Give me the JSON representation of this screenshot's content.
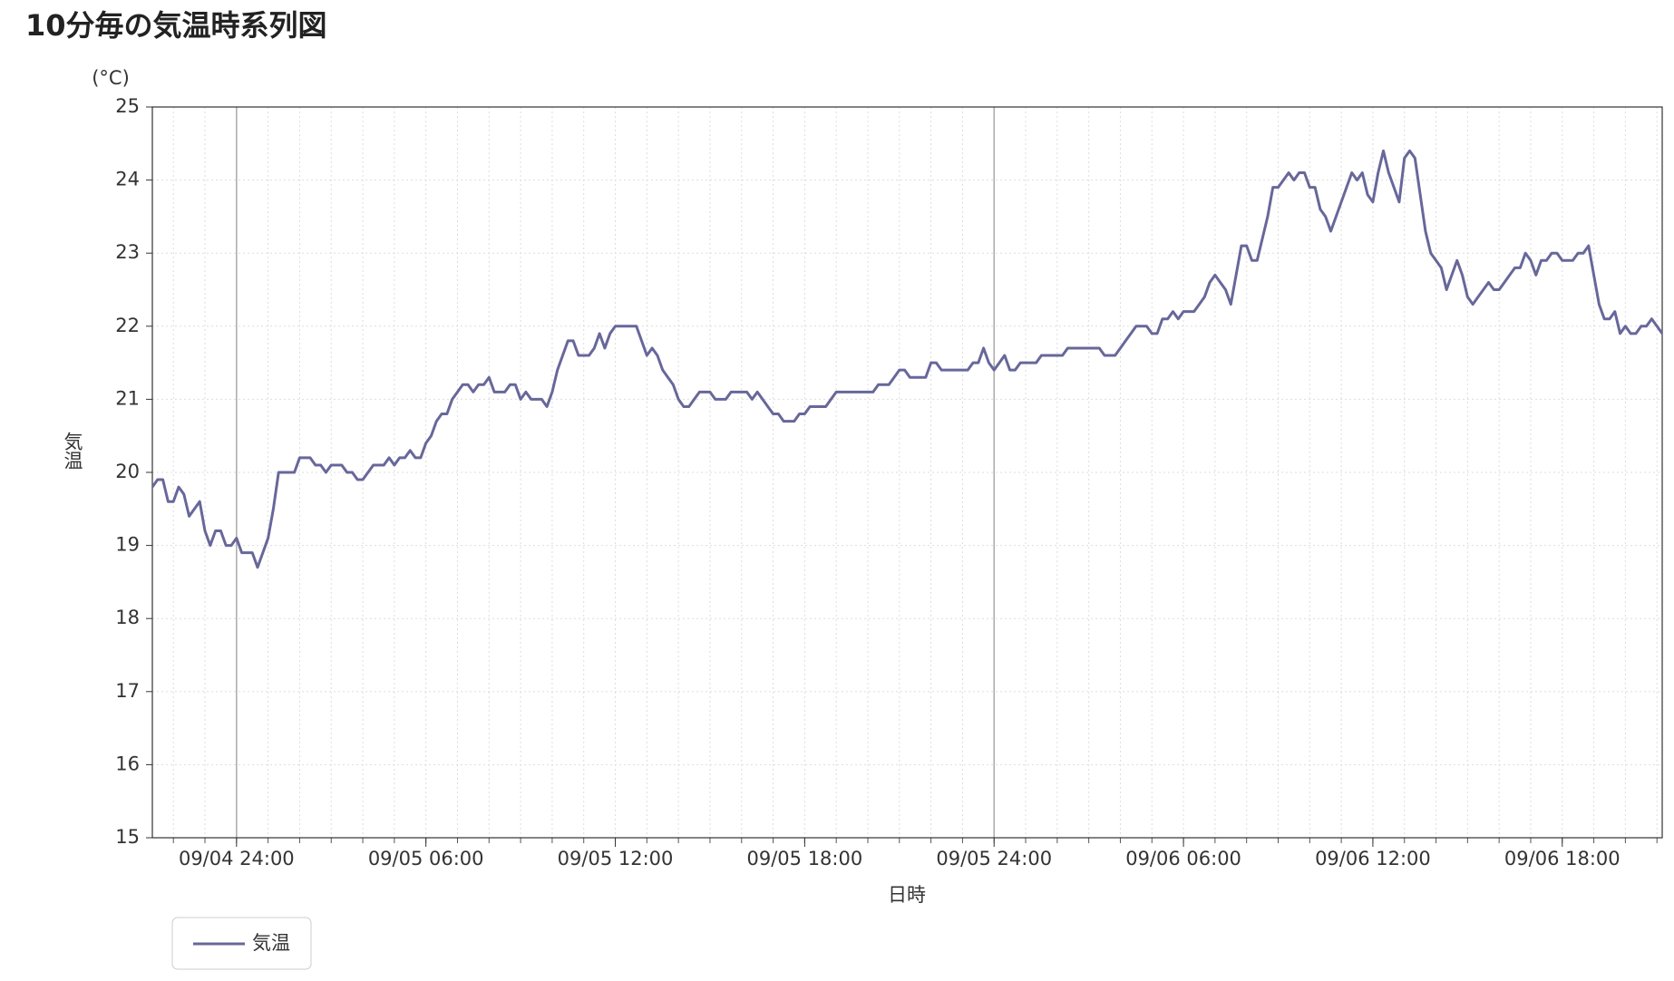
{
  "chart_data": {
    "type": "line",
    "title": "10分毎の気温時系列図",
    "y_unit": "(°C)",
    "ylabel": "気温",
    "xlabel": "日時",
    "ylim": [
      15,
      25
    ],
    "yticks": [
      15,
      16,
      17,
      18,
      19,
      20,
      21,
      22,
      23,
      24,
      25
    ],
    "grid": true,
    "legend": "bottom-left",
    "xticks": [
      {
        "value": "09/05 00:00",
        "label": "09/04 24:00"
      },
      "09/05 06:00",
      "09/05 12:00",
      "09/05 18:00",
      {
        "value": "09/06 00:00",
        "label": "09/05 24:00"
      },
      "09/06 06:00",
      "09/06 12:00",
      "09/06 18:00"
    ],
    "x": [
      "09/04 21:20",
      "09/04 21:30",
      "09/04 21:40",
      "09/04 21:50",
      "09/04 22:00",
      "09/04 22:10",
      "09/04 22:20",
      "09/04 22:30",
      "09/04 22:40",
      "09/04 22:50",
      "09/04 23:00",
      "09/04 23:10",
      "09/04 23:20",
      "09/04 23:30",
      "09/04 23:40",
      "09/04 23:50",
      "09/05 00:00",
      "09/05 00:10",
      "09/05 00:20",
      "09/05 00:30",
      "09/05 00:40",
      "09/05 00:50",
      "09/05 01:00",
      "09/05 01:10",
      "09/05 01:20",
      "09/05 01:30",
      "09/05 01:40",
      "09/05 01:50",
      "09/05 02:00",
      "09/05 02:10",
      "09/05 02:20",
      "09/05 02:30",
      "09/05 02:40",
      "09/05 02:50",
      "09/05 03:00",
      "09/05 03:10",
      "09/05 03:20",
      "09/05 03:30",
      "09/05 03:40",
      "09/05 03:50",
      "09/05 04:00",
      "09/05 04:10",
      "09/05 04:20",
      "09/05 04:30",
      "09/05 04:40",
      "09/05 04:50",
      "09/05 05:00",
      "09/05 05:10",
      "09/05 05:20",
      "09/05 05:30",
      "09/05 05:40",
      "09/05 05:50",
      "09/05 06:00",
      "09/05 06:10",
      "09/05 06:20",
      "09/05 06:30",
      "09/05 06:40",
      "09/05 06:50",
      "09/05 07:00",
      "09/05 07:10",
      "09/05 07:20",
      "09/05 07:30",
      "09/05 07:40",
      "09/05 07:50",
      "09/05 08:00",
      "09/05 08:10",
      "09/05 08:20",
      "09/05 08:30",
      "09/05 08:40",
      "09/05 08:50",
      "09/05 09:00",
      "09/05 09:10",
      "09/05 09:20",
      "09/05 09:30",
      "09/05 09:40",
      "09/05 09:50",
      "09/05 10:00",
      "09/05 10:10",
      "09/05 10:20",
      "09/05 10:30",
      "09/05 10:40",
      "09/05 10:50",
      "09/05 11:00",
      "09/05 11:10",
      "09/05 11:20",
      "09/05 11:30",
      "09/05 11:40",
      "09/05 11:50",
      "09/05 12:00",
      "09/05 12:10",
      "09/05 12:20",
      "09/05 12:30",
      "09/05 12:40",
      "09/05 12:50",
      "09/05 13:00",
      "09/05 13:10",
      "09/05 13:20",
      "09/05 13:30",
      "09/05 13:40",
      "09/05 13:50",
      "09/05 14:00",
      "09/05 14:10",
      "09/05 14:20",
      "09/05 14:30",
      "09/05 14:40",
      "09/05 14:50",
      "09/05 15:00",
      "09/05 15:10",
      "09/05 15:20",
      "09/05 15:30",
      "09/05 15:40",
      "09/05 15:50",
      "09/05 16:00",
      "09/05 16:10",
      "09/05 16:20",
      "09/05 16:30",
      "09/05 16:40",
      "09/05 16:50",
      "09/05 17:00",
      "09/05 17:10",
      "09/05 17:20",
      "09/05 17:30",
      "09/05 17:40",
      "09/05 17:50",
      "09/05 18:00",
      "09/05 18:10",
      "09/05 18:20",
      "09/05 18:30",
      "09/05 18:40",
      "09/05 18:50",
      "09/05 19:00",
      "09/05 19:10",
      "09/05 19:20",
      "09/05 19:30",
      "09/05 19:40",
      "09/05 19:50",
      "09/05 20:00",
      "09/05 20:10",
      "09/05 20:20",
      "09/05 20:30",
      "09/05 20:40",
      "09/05 20:50",
      "09/05 21:00",
      "09/05 21:10",
      "09/05 21:20",
      "09/05 21:30",
      "09/05 21:40",
      "09/05 21:50",
      "09/05 22:00",
      "09/05 22:10",
      "09/05 22:20",
      "09/05 22:30",
      "09/05 22:40",
      "09/05 22:50",
      "09/05 23:00",
      "09/05 23:10",
      "09/05 23:20",
      "09/05 23:30",
      "09/05 23:40",
      "09/05 23:50",
      "09/06 00:00",
      "09/06 00:10",
      "09/06 00:20",
      "09/06 00:30",
      "09/06 00:40",
      "09/06 00:50",
      "09/06 01:00",
      "09/06 01:10",
      "09/06 01:20",
      "09/06 01:30",
      "09/06 01:40",
      "09/06 01:50",
      "09/06 02:00",
      "09/06 02:10",
      "09/06 02:20",
      "09/06 02:30",
      "09/06 02:40",
      "09/06 02:50",
      "09/06 03:00",
      "09/06 03:10",
      "09/06 03:20",
      "09/06 03:30",
      "09/06 03:40",
      "09/06 03:50",
      "09/06 04:00",
      "09/06 04:10",
      "09/06 04:20",
      "09/06 04:30",
      "09/06 04:40",
      "09/06 04:50",
      "09/06 05:00",
      "09/06 05:10",
      "09/06 05:20",
      "09/06 05:30",
      "09/06 05:40",
      "09/06 05:50",
      "09/06 06:00",
      "09/06 06:10",
      "09/06 06:20",
      "09/06 06:30",
      "09/06 06:40",
      "09/06 06:50",
      "09/06 07:00",
      "09/06 07:10",
      "09/06 07:20",
      "09/06 07:30",
      "09/06 07:40",
      "09/06 07:50",
      "09/06 08:00",
      "09/06 08:10",
      "09/06 08:20",
      "09/06 08:30",
      "09/06 08:40",
      "09/06 08:50",
      "09/06 09:00",
      "09/06 09:10",
      "09/06 09:20",
      "09/06 09:30",
      "09/06 09:40",
      "09/06 09:50",
      "09/06 10:00",
      "09/06 10:10",
      "09/06 10:20",
      "09/06 10:30",
      "09/06 10:40",
      "09/06 10:50",
      "09/06 11:00",
      "09/06 11:10",
      "09/06 11:20",
      "09/06 11:30",
      "09/06 11:40",
      "09/06 11:50",
      "09/06 12:00",
      "09/06 12:10",
      "09/06 12:20",
      "09/06 12:30",
      "09/06 12:40",
      "09/06 12:50",
      "09/06 13:00",
      "09/06 13:10",
      "09/06 13:20",
      "09/06 13:30",
      "09/06 13:40",
      "09/06 13:50",
      "09/06 14:00",
      "09/06 14:10",
      "09/06 14:20",
      "09/06 14:30",
      "09/06 14:40",
      "09/06 14:50",
      "09/06 15:00",
      "09/06 15:10",
      "09/06 15:20",
      "09/06 15:30",
      "09/06 15:40",
      "09/06 15:50",
      "09/06 16:00",
      "09/06 16:10",
      "09/06 16:20",
      "09/06 16:30",
      "09/06 16:40",
      "09/06 16:50",
      "09/06 17:00",
      "09/06 17:10",
      "09/06 17:20",
      "09/06 17:30",
      "09/06 17:40",
      "09/06 17:50",
      "09/06 18:00",
      "09/06 18:10",
      "09/06 18:20",
      "09/06 18:30",
      "09/06 18:40",
      "09/06 18:50",
      "09/06 19:00",
      "09/06 19:10",
      "09/06 19:20",
      "09/06 19:30",
      "09/06 19:40",
      "09/06 19:50",
      "09/06 20:00",
      "09/06 20:10",
      "09/06 20:20",
      "09/06 20:30",
      "09/06 20:40",
      "09/06 20:50",
      "09/06 21:00",
      "09/06 21:10"
    ],
    "series": [
      {
        "name": "気温",
        "color": "#67679a",
        "values": [
          19.8,
          19.9,
          19.9,
          19.6,
          19.6,
          19.8,
          19.7,
          19.4,
          19.5,
          19.6,
          19.2,
          19.0,
          19.2,
          19.2,
          19.0,
          19.0,
          19.1,
          18.9,
          18.9,
          18.9,
          18.7,
          18.9,
          19.1,
          19.5,
          20.0,
          20.0,
          20.0,
          20.0,
          20.2,
          20.2,
          20.2,
          20.1,
          20.1,
          20.0,
          20.1,
          20.1,
          20.1,
          20.0,
          20.0,
          19.9,
          19.9,
          20.0,
          20.1,
          20.1,
          20.1,
          20.2,
          20.1,
          20.2,
          20.2,
          20.3,
          20.2,
          20.2,
          20.4,
          20.5,
          20.7,
          20.8,
          20.8,
          21.0,
          21.1,
          21.2,
          21.2,
          21.1,
          21.2,
          21.2,
          21.3,
          21.1,
          21.1,
          21.1,
          21.2,
          21.2,
          21.0,
          21.1,
          21.0,
          21.0,
          21.0,
          20.9,
          21.1,
          21.4,
          21.6,
          21.8,
          21.8,
          21.6,
          21.6,
          21.6,
          21.7,
          21.9,
          21.7,
          21.9,
          22.0,
          22.0,
          22.0,
          22.0,
          22.0,
          21.8,
          21.6,
          21.7,
          21.6,
          21.4,
          21.3,
          21.2,
          21.0,
          20.9,
          20.9,
          21.0,
          21.1,
          21.1,
          21.1,
          21.0,
          21.0,
          21.0,
          21.1,
          21.1,
          21.1,
          21.1,
          21.0,
          21.1,
          21.0,
          20.9,
          20.8,
          20.8,
          20.7,
          20.7,
          20.7,
          20.8,
          20.8,
          20.9,
          20.9,
          20.9,
          20.9,
          21.0,
          21.1,
          21.1,
          21.1,
          21.1,
          21.1,
          21.1,
          21.1,
          21.1,
          21.2,
          21.2,
          21.2,
          21.3,
          21.4,
          21.4,
          21.3,
          21.3,
          21.3,
          21.3,
          21.5,
          21.5,
          21.4,
          21.4,
          21.4,
          21.4,
          21.4,
          21.4,
          21.5,
          21.5,
          21.7,
          21.5,
          21.4,
          21.5,
          21.6,
          21.4,
          21.4,
          21.5,
          21.5,
          21.5,
          21.5,
          21.6,
          21.6,
          21.6,
          21.6,
          21.6,
          21.7,
          21.7,
          21.7,
          21.7,
          21.7,
          21.7,
          21.7,
          21.6,
          21.6,
          21.6,
          21.7,
          21.8,
          21.9,
          22.0,
          22.0,
          22.0,
          21.9,
          21.9,
          22.1,
          22.1,
          22.2,
          22.1,
          22.2,
          22.2,
          22.2,
          22.3,
          22.4,
          22.6,
          22.7,
          22.6,
          22.5,
          22.3,
          22.7,
          23.1,
          23.1,
          22.9,
          22.9,
          23.2,
          23.5,
          23.9,
          23.9,
          24.0,
          24.1,
          24.0,
          24.1,
          24.1,
          23.9,
          23.9,
          23.6,
          23.5,
          23.3,
          23.5,
          23.7,
          23.9,
          24.1,
          24.0,
          24.1,
          23.8,
          23.7,
          24.1,
          24.4,
          24.1,
          23.9,
          23.7,
          24.3,
          24.4,
          24.3,
          23.8,
          23.3,
          23.0,
          22.9,
          22.8,
          22.5,
          22.7,
          22.9,
          22.7,
          22.4,
          22.3,
          22.4,
          22.5,
          22.6,
          22.5,
          22.5,
          22.6,
          22.7,
          22.8,
          22.8,
          23.0,
          22.9,
          22.7,
          22.9,
          22.9,
          23.0,
          23.0,
          22.9,
          22.9,
          22.9,
          23.0,
          23.0,
          23.1,
          22.7,
          22.3,
          22.1,
          22.1,
          22.2,
          21.9,
          22.0,
          21.9,
          21.9,
          22.0,
          22.0,
          22.1,
          22.0,
          21.9
        ]
      }
    ]
  }
}
